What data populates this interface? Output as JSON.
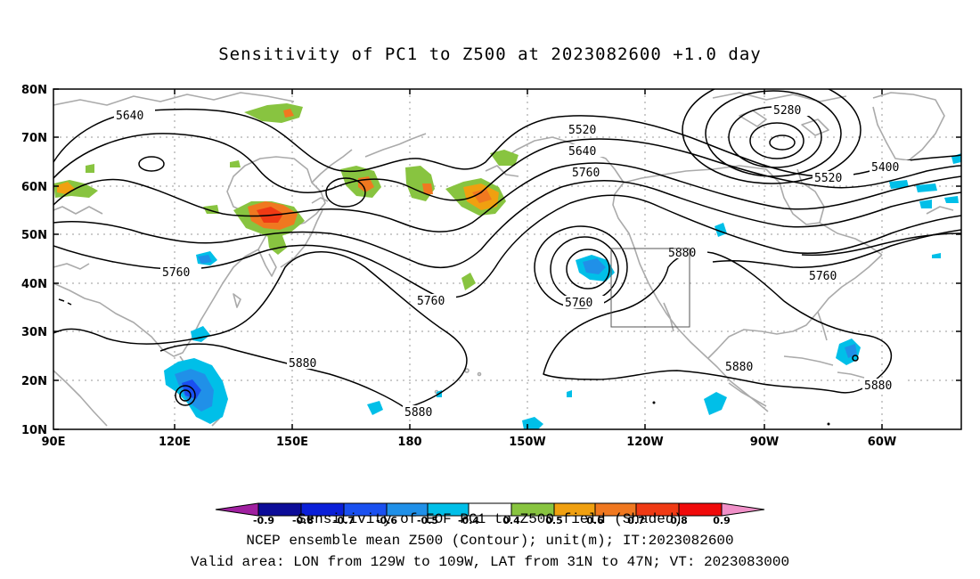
{
  "title": "Sensitivity of PC1 to Z500 at 2023082600 +1.0 day",
  "axes": {
    "lat_labels": [
      "80N",
      "70N",
      "60N",
      "50N",
      "40N",
      "30N",
      "20N",
      "10N"
    ],
    "lon_labels": [
      "90E",
      "120E",
      "150E",
      "180",
      "150W",
      "120W",
      "90W",
      "60W"
    ],
    "lon_range": [
      "90E",
      "45W"
    ],
    "lat_range": [
      "10N",
      "80N"
    ],
    "grid": true
  },
  "contours": {
    "unit": "m",
    "labels": [
      {
        "text": "5640",
        "lon": "99E"
      },
      {
        "text": "5520",
        "lon": "142W"
      },
      {
        "text": "5640",
        "lon": "142W"
      },
      {
        "text": "5760",
        "lon": "142W"
      },
      {
        "text": "5280",
        "lon": "89W"
      },
      {
        "text": "5400",
        "lon": "62W"
      },
      {
        "text": "5520",
        "lon": "73W"
      },
      {
        "text": "5760",
        "lon": "122E"
      },
      {
        "text": "5760",
        "lon": "174W"
      },
      {
        "text": "5760",
        "lon": "138W"
      },
      {
        "text": "5880",
        "lon": "112W"
      },
      {
        "text": "5760",
        "lon": "75W"
      },
      {
        "text": "5880",
        "lon": "156E"
      },
      {
        "text": "5880",
        "lon": "178W"
      },
      {
        "text": "5880",
        "lon": "98W"
      },
      {
        "text": "5880",
        "lon": "65W"
      }
    ]
  },
  "colorbar": {
    "ticks": [
      "-0.9",
      "-0.8",
      "-0.7",
      "-0.6",
      "-0.5",
      "-0.4",
      "0.4",
      "0.5",
      "0.6",
      "0.7",
      "0.8",
      "0.9"
    ],
    "colors": [
      "#a020a0",
      "#0c0c98",
      "#0a1fd8",
      "#1a50f0",
      "#2090e8",
      "#00bfe8",
      "#ffffff",
      "#88c440",
      "#f0a010",
      "#f07820",
      "#f03a14",
      "#f00a0a",
      "#f090c8"
    ]
  },
  "captions": {
    "line1": "Sensitivity of EOF PC1 to Z500 field (Shaded)",
    "line2": "NCEP ensemble mean Z500 (Contour); unit(m); IT:2023082600",
    "line3": "Valid area: LON from 129W to 109W, LAT from 31N to 47N; VT: 2023083000"
  }
}
